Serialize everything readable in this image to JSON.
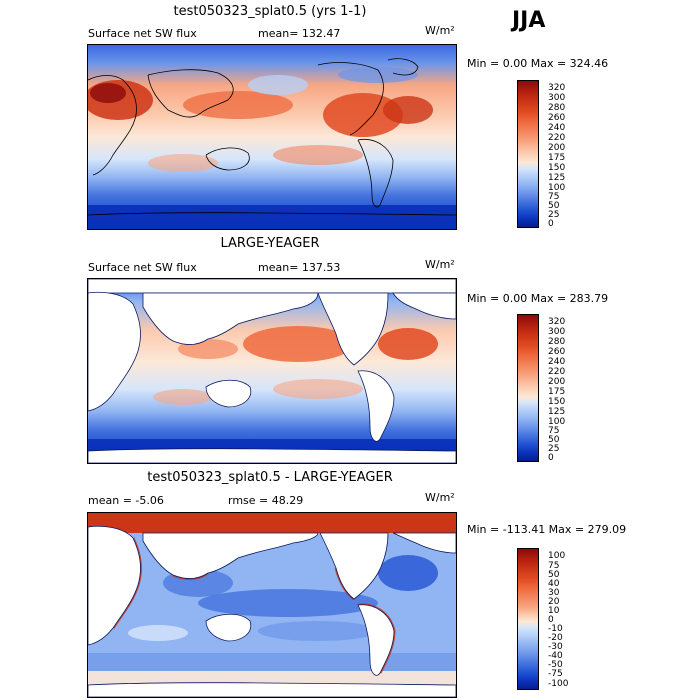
{
  "season": "JJA",
  "panels": [
    {
      "title": "test050323_splat0.5 (yrs 1-1)",
      "variable": "Surface net SW flux",
      "stat_text": "mean= 132.47",
      "units": "W/m²",
      "min_max": "Min =    0.00 Max = 324.46",
      "colorbar_labels": [
        "320",
        "300",
        "280",
        "260",
        "240",
        "220",
        "200",
        "175",
        "150",
        "125",
        "100",
        "75",
        "50",
        "25",
        "0"
      ],
      "land_masked": false
    },
    {
      "title": "LARGE-YEAGER",
      "variable": "Surface net SW flux",
      "stat_text": "mean= 137.53",
      "units": "W/m²",
      "min_max": "Min =    0.00 Max = 283.79",
      "colorbar_labels": [
        "320",
        "300",
        "280",
        "260",
        "240",
        "220",
        "200",
        "175",
        "150",
        "125",
        "100",
        "75",
        "50",
        "25",
        "0"
      ],
      "land_masked": true
    },
    {
      "title": "test050323_splat0.5 - LARGE-YEAGER",
      "variable": "mean =  -5.06",
      "stat_text": "rmse =  48.29",
      "units": "W/m²",
      "min_max": "Min = -113.41 Max = 279.09",
      "colorbar_labels": [
        "100",
        "75",
        "50",
        "40",
        "30",
        "20",
        "10",
        "0",
        "-10",
        "-20",
        "-30",
        "-40",
        "-50",
        "-75",
        "-100"
      ],
      "land_masked": true
    }
  ],
  "colors": {
    "abs_scale": [
      "#8c0a0a",
      "#b01e0e",
      "#cc3515",
      "#e04a22",
      "#ee6a3e",
      "#f4875f",
      "#f8a784",
      "#fbcaae",
      "#fde8d8",
      "#d6e6fb",
      "#b6d0f8",
      "#91b5f2",
      "#6c95ea",
      "#4472de",
      "#1d4fd1",
      "#0a2fb8",
      "#071e8a"
    ],
    "diff_scale": [
      "#8c0a0a",
      "#b01e0e",
      "#cc3515",
      "#e04a22",
      "#ee6a3e",
      "#f4875f",
      "#f8a784",
      "#fbcaae",
      "#fde8d8",
      "#d6e6fb",
      "#b6d0f8",
      "#91b5f2",
      "#6c95ea",
      "#4472de",
      "#1d4fd1",
      "#0a2fb8",
      "#071e8a"
    ]
  }
}
